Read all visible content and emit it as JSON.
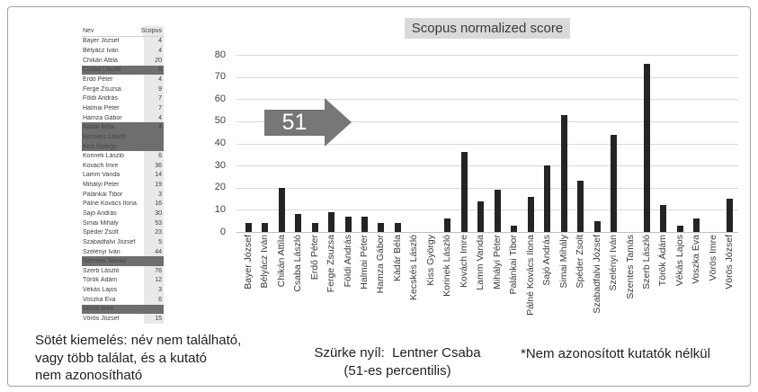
{
  "chart_data": {
    "type": "bar",
    "title": "Scopus normalized score",
    "categories": [
      "Bayer József",
      "Bélyácz Iván",
      "Chikán Attila",
      "Csaba László",
      "Erdő Péter",
      "Ferge Zsuzsa",
      "Földi András",
      "Halmai Péter",
      "Hamza Gábor",
      "Kádár Béla",
      "Kecskés László",
      "Kiss György",
      "Korinek László",
      "Kovách Imre",
      "Lamm Vanda",
      "Mihályi Péter",
      "Palánkai Tibor",
      "Pálné Kovács Ilona",
      "Sajó András",
      "Simai Mihály",
      "Spéder Zsolt",
      "Szabadfalvi József",
      "Szelényi Iván",
      "Szentes Tamás",
      "Szerb László",
      "Török Ádám",
      "Vékás Lajos",
      "Voszka Éva",
      "Vörös Imre",
      "Vörös József"
    ],
    "values": [
      4,
      4,
      20,
      8,
      4,
      9,
      7,
      7,
      4,
      4,
      0,
      0,
      6,
      36,
      14,
      19,
      3,
      16,
      30,
      53,
      23,
      5,
      44,
      0,
      76,
      12,
      3,
      6,
      0,
      15
    ],
    "xlabel": "",
    "ylabel": "",
    "ylim": [
      0,
      80
    ],
    "yticks": [
      0,
      10,
      20,
      30,
      40,
      50,
      60,
      70,
      80
    ],
    "grid": true,
    "legend_position": "none",
    "bar_color": "#242424"
  },
  "arrow": {
    "label": "51",
    "color": "#777777"
  },
  "table": {
    "headers": [
      "Név",
      "Scopus"
    ],
    "rows": [
      {
        "name": "Bayer József",
        "value": "4",
        "dark": false
      },
      {
        "name": "Bélyácz Iván",
        "value": "4",
        "dark": false
      },
      {
        "name": "Chikán Attila",
        "value": "20",
        "dark": false
      },
      {
        "name": "Csaba László",
        "value": "8",
        "dark": true
      },
      {
        "name": "Erdő Péter",
        "value": "4",
        "dark": false
      },
      {
        "name": "Ferge Zsuzsa",
        "value": "9",
        "dark": false
      },
      {
        "name": "Földi András",
        "value": "7",
        "dark": false
      },
      {
        "name": "Halmai Péter",
        "value": "7",
        "dark": false
      },
      {
        "name": "Hamza Gábor",
        "value": "4",
        "dark": false
      },
      {
        "name": "Kádár Béla",
        "value": "4",
        "dark": true
      },
      {
        "name": "Kecskés László",
        "value": "",
        "dark": true
      },
      {
        "name": "Kiss György",
        "value": "",
        "dark": true
      },
      {
        "name": "Korinek László",
        "value": "6",
        "dark": false
      },
      {
        "name": "Kovách Imre",
        "value": "36",
        "dark": false
      },
      {
        "name": "Lamm Vanda",
        "value": "14",
        "dark": false
      },
      {
        "name": "Mihályi Péter",
        "value": "19",
        "dark": false
      },
      {
        "name": "Palánkai Tibor",
        "value": "3",
        "dark": false
      },
      {
        "name": "Pálné Kovács Ilona",
        "value": "16",
        "dark": false
      },
      {
        "name": "Sajó András",
        "value": "30",
        "dark": false
      },
      {
        "name": "Simai Mihály",
        "value": "53",
        "dark": false
      },
      {
        "name": "Spéder Zsolt",
        "value": "23",
        "dark": false
      },
      {
        "name": "Szabadfalvi József",
        "value": "5",
        "dark": false
      },
      {
        "name": "Szelényi Iván",
        "value": "44",
        "dark": false
      },
      {
        "name": "Szentes Tamás",
        "value": "",
        "dark": true
      },
      {
        "name": "Szerb László",
        "value": "76",
        "dark": false
      },
      {
        "name": "Török Ádám",
        "value": "12",
        "dark": false
      },
      {
        "name": "Vékás Lajos",
        "value": "3",
        "dark": false
      },
      {
        "name": "Voszka Éva",
        "value": "6",
        "dark": false
      },
      {
        "name": "Vörös Imre",
        "value": "",
        "dark": true
      },
      {
        "name": "Vörös József",
        "value": "15",
        "dark": false
      }
    ]
  },
  "notes": {
    "dark_lines": [
      "Sötét kiemelés: név nem található,",
      "vagy több találat, és a kutató",
      "nem azonosítható"
    ],
    "arrow_lines": [
      "Szürke nyíl:  Lentner Csaba",
      "(51-es percentilis)"
    ],
    "asterisk": "*Nem azonosított kutatók nélkül"
  },
  "colors": {
    "bar": "#242424",
    "arrow_gray": "#777777",
    "title_highlight_bg": "#d9d9d9",
    "dark_row_bg": "#6e6e6e",
    "value_column_bg": "#e9e9e9",
    "frame_border": "#a3a3a3"
  }
}
